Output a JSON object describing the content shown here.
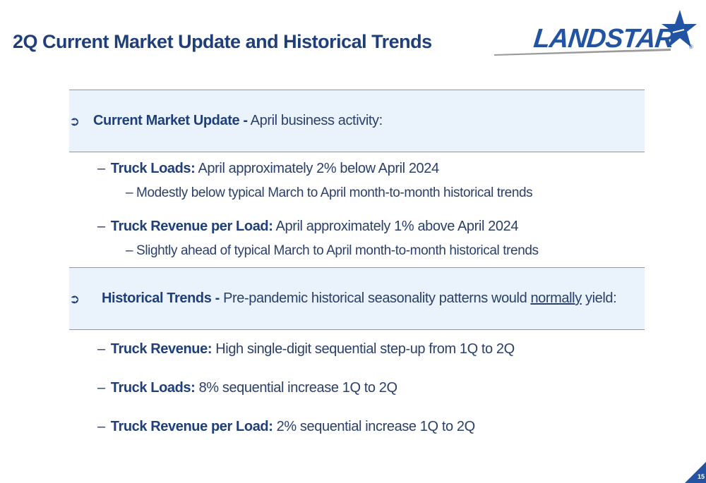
{
  "title": "2Q Current Market Update and Historical Trends",
  "logo": {
    "text": "LANDSTAR",
    "registered": "®"
  },
  "colors": {
    "navy": "#1f3f7a",
    "logo_blue": "#2254a3",
    "band": "#eaf3fb"
  },
  "bullet_icon": "arrow-right-icon",
  "section1": {
    "heading": "Current Market Update -",
    "intro": " April business activity:",
    "items": [
      {
        "label": "Truck Loads:",
        "text": " April approximately 2% below April 2024",
        "sub": "– Modestly below typical March to April month-to-month historical trends"
      },
      {
        "label": "Truck Revenue per Load:",
        "text": " April approximately 1% above April 2024",
        "sub": "– Slightly ahead of typical March to April month-to-month historical trends"
      }
    ]
  },
  "section2": {
    "heading": "Historical Trends -",
    "intro_before": " Pre-pandemic historical seasonality patterns would ",
    "intro_underlined": "normally",
    "intro_after": " yield:",
    "items": [
      {
        "label": "Truck Revenue:",
        "text": " High single-digit sequential step-up from 1Q to 2Q"
      },
      {
        "label": "Truck Loads:",
        "text": " 8% sequential increase 1Q to 2Q"
      },
      {
        "label": "Truck Revenue per Load:",
        "text": " 2% sequential increase 1Q to 2Q"
      }
    ]
  },
  "dash": "–",
  "page_number": "15"
}
